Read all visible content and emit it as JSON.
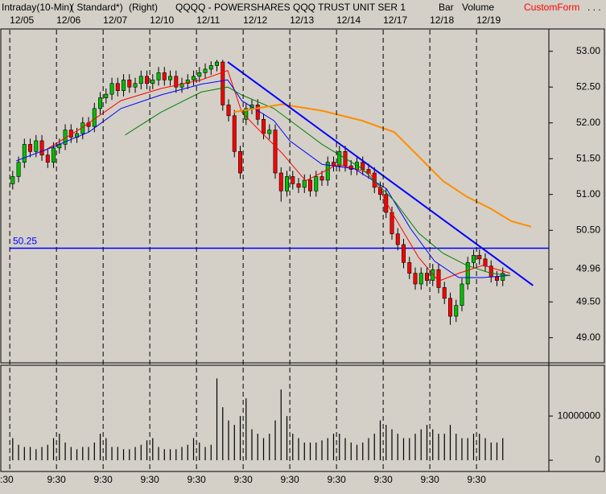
{
  "header": {
    "items": [
      "Intraday(10-Min)",
      "( Standard*)",
      "(Right)",
      "QQQQ - POWERSHARES QQQ TRUST UNIT SER 1",
      "Bar",
      "Volume",
      "CustomForm",
      ". . ."
    ]
  },
  "chart_data": [
    {
      "type": "candlestick",
      "dates": [
        "12/05",
        "12/06",
        "12/07",
        "12/10",
        "12/11",
        "12/12",
        "12/13",
        "12/14",
        "12/17",
        "12/18",
        "12/19"
      ],
      "x": [
        0.0625,
        0.1875,
        0.3125,
        0.4375,
        0.5625,
        0.6875,
        0.8125,
        0.9375,
        1.0625,
        1.1875,
        1.3125,
        1.4375,
        1.5625,
        1.6875,
        1.8125,
        1.9375,
        2.0625,
        2.1875,
        2.3125,
        2.4375,
        2.5625,
        2.6875,
        2.8125,
        2.9375,
        3.0625,
        3.1875,
        3.3125,
        3.4375,
        3.5625,
        3.6875,
        3.8125,
        3.9375,
        4.0625,
        4.1875,
        4.3125,
        4.4375,
        4.5625,
        4.6875,
        4.8125,
        4.9375,
        5.0625,
        5.1875,
        5.3125,
        5.4375,
        5.5625,
        5.6875,
        5.8125,
        5.9375,
        6.0625,
        6.1875,
        6.3125,
        6.4375,
        6.5625,
        6.6875,
        6.8125,
        6.9375,
        7.0625,
        7.1875,
        7.3125,
        7.4375,
        7.5625,
        7.6875,
        7.8125,
        7.9375,
        8.0625,
        8.1875,
        8.3125,
        8.4375,
        8.5625,
        8.6875,
        8.8125,
        8.9375,
        9.0625,
        9.1875,
        9.3125,
        9.4375,
        9.5625,
        9.6875,
        9.8125,
        9.9375,
        10.0625,
        10.1875,
        10.3125,
        10.4375,
        10.5625
      ],
      "open": [
        51.15,
        51.25,
        51.45,
        51.7,
        51.6,
        51.75,
        51.55,
        51.45,
        51.65,
        51.7,
        51.9,
        51.8,
        51.85,
        52.0,
        51.95,
        52.2,
        52.35,
        52.4,
        52.55,
        52.45,
        52.6,
        52.5,
        52.55,
        52.65,
        52.55,
        52.6,
        52.7,
        52.6,
        52.65,
        52.5,
        52.55,
        52.6,
        52.65,
        52.7,
        52.75,
        52.8,
        52.85,
        52.25,
        52.1,
        51.6,
        52.05,
        52.2,
        52.25,
        52.05,
        51.85,
        51.9,
        51.3,
        51.05,
        51.25,
        51.15,
        51.1,
        51.2,
        51.05,
        51.25,
        51.2,
        51.45,
        51.4,
        51.6,
        51.4,
        51.35,
        51.45,
        51.35,
        51.3,
        51.1,
        51.0,
        50.75,
        50.45,
        50.3,
        50.05,
        49.9,
        49.75,
        49.9,
        49.8,
        49.95,
        49.7,
        49.55,
        49.3,
        49.45,
        49.75,
        50.05,
        50.15,
        50.1,
        50.0,
        49.85,
        49.8
      ],
      "high": [
        51.33,
        51.53,
        51.78,
        51.78,
        51.83,
        51.83,
        51.63,
        51.73,
        51.78,
        51.98,
        51.98,
        51.93,
        52.08,
        52.08,
        52.28,
        52.43,
        52.48,
        52.63,
        52.63,
        52.68,
        52.68,
        52.63,
        52.73,
        52.73,
        52.68,
        52.78,
        52.78,
        52.73,
        52.73,
        52.63,
        52.68,
        52.73,
        52.78,
        52.83,
        52.86,
        52.88,
        52.88,
        52.33,
        52.18,
        51.68,
        52.28,
        52.33,
        52.33,
        52.13,
        51.98,
        51.98,
        51.38,
        51.33,
        51.33,
        51.23,
        51.28,
        51.28,
        51.33,
        51.33,
        51.53,
        51.53,
        51.68,
        51.68,
        51.48,
        51.53,
        51.53,
        51.43,
        51.38,
        51.18,
        51.08,
        50.83,
        50.53,
        50.38,
        50.13,
        49.98,
        49.98,
        49.98,
        50.03,
        50.03,
        49.78,
        49.63,
        49.53,
        49.83,
        50.13,
        50.23,
        50.23,
        50.18,
        50.08,
        49.93,
        49.98
      ],
      "low": [
        51.07,
        51.17,
        51.37,
        51.52,
        51.52,
        51.47,
        51.37,
        51.37,
        51.57,
        51.62,
        51.72,
        51.72,
        51.77,
        51.87,
        51.87,
        52.12,
        52.27,
        52.32,
        52.37,
        52.37,
        52.42,
        52.42,
        52.47,
        52.47,
        52.47,
        52.52,
        52.52,
        52.52,
        52.42,
        52.42,
        52.47,
        52.52,
        52.57,
        52.62,
        52.67,
        52.72,
        52.17,
        52.02,
        51.52,
        51.22,
        51.97,
        52.12,
        51.97,
        51.77,
        51.77,
        51.22,
        50.9,
        50.97,
        51.07,
        51.02,
        51.02,
        50.97,
        50.97,
        51.12,
        51.12,
        51.32,
        51.32,
        51.32,
        51.27,
        51.27,
        51.27,
        51.22,
        51.02,
        50.92,
        50.67,
        50.37,
        50.22,
        49.97,
        49.82,
        49.67,
        49.67,
        49.72,
        49.72,
        49.62,
        49.47,
        49.18,
        49.22,
        49.37,
        49.67,
        49.97,
        50.02,
        49.92,
        49.77,
        49.72,
        49.72
      ],
      "close": [
        51.25,
        51.45,
        51.7,
        51.6,
        51.75,
        51.55,
        51.45,
        51.65,
        51.7,
        51.9,
        51.8,
        51.85,
        52.0,
        51.95,
        52.2,
        52.35,
        52.4,
        52.55,
        52.45,
        52.6,
        52.5,
        52.55,
        52.65,
        52.55,
        52.6,
        52.7,
        52.6,
        52.65,
        52.5,
        52.55,
        52.6,
        52.65,
        52.7,
        52.75,
        52.8,
        52.85,
        52.25,
        52.1,
        51.6,
        51.3,
        52.2,
        52.25,
        52.05,
        51.85,
        51.9,
        51.3,
        51.05,
        51.25,
        51.15,
        51.1,
        51.2,
        51.05,
        51.25,
        51.2,
        51.45,
        51.4,
        51.6,
        51.4,
        51.35,
        51.45,
        51.35,
        51.3,
        51.1,
        51.0,
        50.75,
        50.45,
        50.3,
        50.05,
        49.9,
        49.75,
        49.9,
        49.8,
        49.95,
        49.7,
        49.55,
        49.3,
        49.45,
        49.75,
        50.05,
        50.15,
        50.1,
        50.0,
        49.85,
        49.8,
        49.9
      ],
      "up_color": "#00c000",
      "down_color": "#ff0000",
      "series": [
        {
          "color": "#ff0000",
          "x": [
            0.66,
            1.52,
            2.38,
            3.24,
            4.1,
            4.67,
            4.97,
            5.31,
            5.83,
            6.34,
            7.03,
            7.72,
            8.24,
            8.76,
            9.19,
            9.62,
            10.14,
            10.72
          ],
          "values": [
            51.58,
            51.92,
            52.31,
            52.48,
            52.6,
            52.73,
            52.15,
            51.92,
            51.58,
            51.19,
            51.42,
            51.3,
            50.69,
            50.12,
            49.79,
            49.9,
            50.01,
            49.9
          ]
        },
        {
          "color": "#0000ff",
          "x": [
            0.14,
            0.83,
            1.69,
            2.38,
            3.24,
            4.1,
            4.67,
            4.97,
            5.66,
            6.0,
            6.69,
            7.38,
            8.07,
            8.59,
            9.1,
            9.62,
            10.14,
            10.72
          ],
          "values": [
            51.47,
            51.64,
            51.87,
            52.2,
            52.39,
            52.54,
            52.6,
            52.31,
            52.03,
            51.75,
            51.42,
            51.36,
            51.08,
            50.52,
            50.07,
            49.84,
            49.84,
            49.87
          ]
        },
        {
          "color": "#008000",
          "x": [
            2.47,
            3.24,
            4.1,
            4.67,
            4.97,
            5.66,
            6.69,
            7.55,
            8.24,
            8.76,
            9.28,
            9.79,
            10.31,
            10.72
          ],
          "values": [
            51.83,
            52.15,
            52.43,
            52.5,
            52.39,
            52.2,
            51.7,
            51.36,
            50.91,
            50.46,
            50.18,
            50.01,
            49.9,
            49.87
          ]
        },
        {
          "color": "#ff8c00",
          "x": [
            4.79,
            5.83,
            6.69,
            7.55,
            8.24,
            8.76,
            9.28,
            9.79,
            10.31,
            10.74,
            11.17
          ],
          "values": [
            52.15,
            52.26,
            52.17,
            52.03,
            51.87,
            51.53,
            51.19,
            50.97,
            50.8,
            50.63,
            50.55
          ]
        }
      ],
      "trendline": {
        "color": "#0000ff",
        "x": [
          4.67,
          11.21
        ],
        "values": [
          52.85,
          49.73
        ]
      },
      "hline": 50.25,
      "hline_color": "#0000ff",
      "xlim": [
        -0.21,
        11.55
      ],
      "xticks": [
        {
          "value": 0,
          "label": ":30"
        },
        {
          "value": 1,
          "label": "9:30"
        },
        {
          "value": 2,
          "label": "9:30"
        },
        {
          "value": 3,
          "label": "9:30"
        },
        {
          "value": 4,
          "label": "9:30"
        },
        {
          "value": 5,
          "label": "9:30"
        },
        {
          "value": 6,
          "label": "9:30"
        },
        {
          "value": 7,
          "label": "9:30"
        },
        {
          "value": 8,
          "label": "9:30"
        },
        {
          "value": 9,
          "label": "9:30"
        },
        {
          "value": 10,
          "label": "9:30"
        }
      ],
      "ylim": [
        48.66,
        53.3
      ],
      "yticks": [
        {
          "value": 53,
          "label": "53.00"
        },
        {
          "value": 52.5,
          "label": "52.50"
        },
        {
          "value": 52,
          "label": "52.00"
        },
        {
          "value": 51.5,
          "label": "51.50"
        },
        {
          "value": 51,
          "label": "51.00"
        },
        {
          "value": 50.5,
          "label": "50.50"
        },
        49.96,
        {
          "value": 49.5,
          "label": "49.50"
        },
        {
          "value": 49,
          "label": "49.00"
        }
      ]
    },
    {
      "type": "bar",
      "color": "#000000",
      "x": [
        0.0625,
        0.1875,
        0.3125,
        0.4375,
        0.5625,
        0.6875,
        0.8125,
        0.9375,
        1.0625,
        1.1875,
        1.3125,
        1.4375,
        1.5625,
        1.6875,
        1.8125,
        1.9375,
        2.0625,
        2.1875,
        2.3125,
        2.4375,
        2.5625,
        2.6875,
        2.8125,
        2.9375,
        3.0625,
        3.1875,
        3.3125,
        3.4375,
        3.5625,
        3.6875,
        3.8125,
        3.9375,
        4.0625,
        4.1875,
        4.3125,
        4.4375,
        4.5625,
        4.6875,
        4.8125,
        4.9375,
        5.0625,
        5.1875,
        5.3125,
        5.4375,
        5.5625,
        5.6875,
        5.8125,
        5.9375,
        6.0625,
        6.1875,
        6.3125,
        6.4375,
        6.5625,
        6.6875,
        6.8125,
        6.9375,
        7.0625,
        7.1875,
        7.3125,
        7.4375,
        7.5625,
        7.6875,
        7.8125,
        7.9375,
        8.0625,
        8.1875,
        8.3125,
        8.4375,
        8.5625,
        8.6875,
        8.8125,
        8.9375,
        9.0625,
        9.1875,
        9.3125,
        9.4375,
        9.5625,
        9.6875,
        9.8125,
        9.9375,
        10.0625,
        10.1875,
        10.3125,
        10.4375,
        10.5625
      ],
      "values": [
        5000000,
        3500000,
        3000000,
        3000000,
        2500000,
        3000000,
        3500000,
        5000000,
        6000000,
        4000000,
        3000000,
        2500000,
        3000000,
        3000000,
        4000000,
        6000000,
        5000000,
        3000000,
        3000000,
        2500000,
        2500000,
        3000000,
        3500000,
        4500000,
        5000000,
        3000000,
        2500000,
        2500000,
        2500000,
        3000000,
        3500000,
        5000000,
        4000000,
        3000000,
        3500000,
        18500000,
        12000000,
        9000000,
        8000000,
        10000000,
        14000000,
        7000000,
        6000000,
        5000000,
        6000000,
        9000000,
        16000000,
        10000000,
        6000000,
        5000000,
        4000000,
        4000000,
        4000000,
        4500000,
        5000000,
        6000000,
        6000000,
        5000000,
        4000000,
        3500000,
        4000000,
        5000000,
        6000000,
        9000000,
        8000000,
        7000000,
        6000000,
        5000000,
        5000000,
        6000000,
        7000000,
        8000000,
        7000000,
        6000000,
        6000000,
        8000000,
        6000000,
        5000000,
        5000000,
        6000000,
        6000000,
        5000000,
        4000000,
        4000000,
        5000000
      ],
      "xlim": [
        -0.21,
        11.55
      ],
      "ylim": [
        -2360000,
        21300000
      ],
      "yticks": [
        10000000,
        0
      ]
    }
  ]
}
